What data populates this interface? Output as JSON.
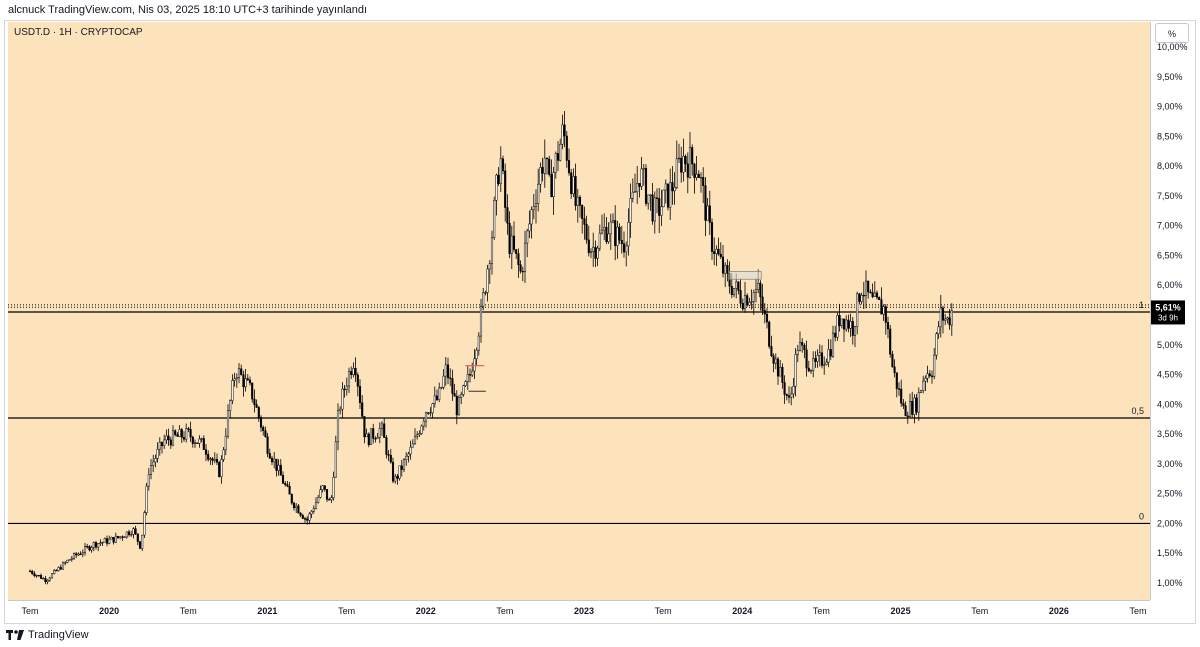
{
  "header": {
    "publisher_line": "alcnuck TradingView.com, Nis 03, 2025 18:10 UTC+3 tarihinde yayınlandı"
  },
  "legend": {
    "symbol": "USDT.D · 1H · CRYPTOCAP"
  },
  "price_scale": {
    "mode_button": "%"
  },
  "footer": {
    "brand": "TradingView",
    "logo_icon": "tradingview-logo-icon"
  },
  "colors": {
    "background": "#fde3bb",
    "candle": "#000000",
    "line": "#000000",
    "price_label": "#000000",
    "highlight_box": "#dcdcdc",
    "red_marker": "#e06666"
  },
  "chart_data": {
    "type": "candlestick",
    "title": "",
    "ylim": [
      0.6,
      10.3
    ],
    "x_range": [
      "2019-07",
      "2026-11"
    ],
    "y_ticks": [
      "1,00%",
      "1,50%",
      "2,00%",
      "2,50%",
      "3,00%",
      "3,50%",
      "4,00%",
      "4,50%",
      "5,00%",
      "5,50%",
      "6,00%",
      "6,50%",
      "7,00%",
      "7,50%",
      "8,00%",
      "8,50%",
      "9,00%",
      "9,50%",
      "10,00%"
    ],
    "y_tick_values": [
      1.0,
      1.5,
      2.0,
      2.5,
      3.0,
      3.5,
      4.0,
      4.5,
      5.0,
      5.5,
      6.0,
      6.5,
      7.0,
      7.5,
      8.0,
      8.5,
      9.0,
      9.5,
      10.0
    ],
    "x_ticks": [
      "Tem",
      "2020",
      "Tem",
      "2021",
      "Tem",
      "2022",
      "Tem",
      "2023",
      "Tem",
      "2024",
      "Tem",
      "2025",
      "Tem",
      "2026",
      "Tem"
    ],
    "x_tick_values": [
      2019.5,
      2020.0,
      2020.5,
      2021.0,
      2021.5,
      2022.0,
      2022.5,
      2023.0,
      2023.5,
      2024.0,
      2024.5,
      2025.0,
      2025.5,
      2026.0,
      2026.5
    ],
    "last_price": {
      "label": "5,61%",
      "value": 5.61,
      "countdown": "3d 9h"
    },
    "horizontal_levels": [
      {
        "label": "1",
        "value": 5.55
      },
      {
        "label": "0,5",
        "value": 3.77
      },
      {
        "label": "0",
        "value": 2.0
      }
    ],
    "dotted_levels": [
      5.67,
      5.63
    ],
    "highlight_box": {
      "x_start": 2023.92,
      "x_end": 2024.12,
      "y_low": 6.1,
      "y_high": 6.23
    },
    "anchors": [
      [
        2019.5,
        1.2
      ],
      [
        2019.6,
        1.05
      ],
      [
        2019.75,
        1.4
      ],
      [
        2019.9,
        1.65
      ],
      [
        2020.05,
        1.75
      ],
      [
        2020.15,
        1.9
      ],
      [
        2020.2,
        1.6
      ],
      [
        2020.25,
        2.9
      ],
      [
        2020.35,
        3.4
      ],
      [
        2020.5,
        3.5
      ],
      [
        2020.6,
        3.3
      ],
      [
        2020.7,
        2.85
      ],
      [
        2020.75,
        3.8
      ],
      [
        2020.8,
        4.6
      ],
      [
        2020.9,
        4.2
      ],
      [
        2021.0,
        3.3
      ],
      [
        2021.15,
        2.4
      ],
      [
        2021.25,
        2.05
      ],
      [
        2021.35,
        2.6
      ],
      [
        2021.4,
        2.3
      ],
      [
        2021.45,
        3.9
      ],
      [
        2021.5,
        4.4
      ],
      [
        2021.55,
        4.8
      ],
      [
        2021.62,
        3.4
      ],
      [
        2021.72,
        3.6
      ],
      [
        2021.8,
        2.7
      ],
      [
        2021.92,
        3.3
      ],
      [
        2022.0,
        3.9
      ],
      [
        2022.08,
        4.1
      ],
      [
        2022.13,
        4.6
      ],
      [
        2022.2,
        3.9
      ],
      [
        2022.28,
        4.5
      ],
      [
        2022.35,
        5.5
      ],
      [
        2022.42,
        6.9
      ],
      [
        2022.47,
        8.2
      ],
      [
        2022.52,
        6.8
      ],
      [
        2022.6,
        6.2
      ],
      [
        2022.68,
        7.4
      ],
      [
        2022.75,
        8.2
      ],
      [
        2022.78,
        7.6
      ],
      [
        2022.87,
        8.6
      ],
      [
        2022.95,
        7.3
      ],
      [
        2023.05,
        6.6
      ],
      [
        2023.15,
        7.0
      ],
      [
        2023.25,
        6.7
      ],
      [
        2023.35,
        7.9
      ],
      [
        2023.45,
        7.2
      ],
      [
        2023.55,
        7.6
      ],
      [
        2023.62,
        8.15
      ],
      [
        2023.72,
        8.0
      ],
      [
        2023.8,
        6.8
      ],
      [
        2023.9,
        6.1
      ],
      [
        2024.0,
        5.8
      ],
      [
        2024.1,
        5.9
      ],
      [
        2024.2,
        4.8
      ],
      [
        2024.3,
        4.0
      ],
      [
        2024.35,
        5.0
      ],
      [
        2024.45,
        4.6
      ],
      [
        2024.55,
        4.9
      ],
      [
        2024.62,
        5.5
      ],
      [
        2024.7,
        5.3
      ],
      [
        2024.75,
        6.0
      ],
      [
        2024.82,
        5.7
      ],
      [
        2024.9,
        5.6
      ],
      [
        2024.95,
        4.6
      ],
      [
        2025.02,
        3.9
      ],
      [
        2025.1,
        4.0
      ],
      [
        2025.15,
        4.5
      ],
      [
        2025.2,
        4.6
      ],
      [
        2025.25,
        5.5
      ],
      [
        2025.3,
        5.4
      ],
      [
        2025.33,
        5.61
      ]
    ]
  }
}
